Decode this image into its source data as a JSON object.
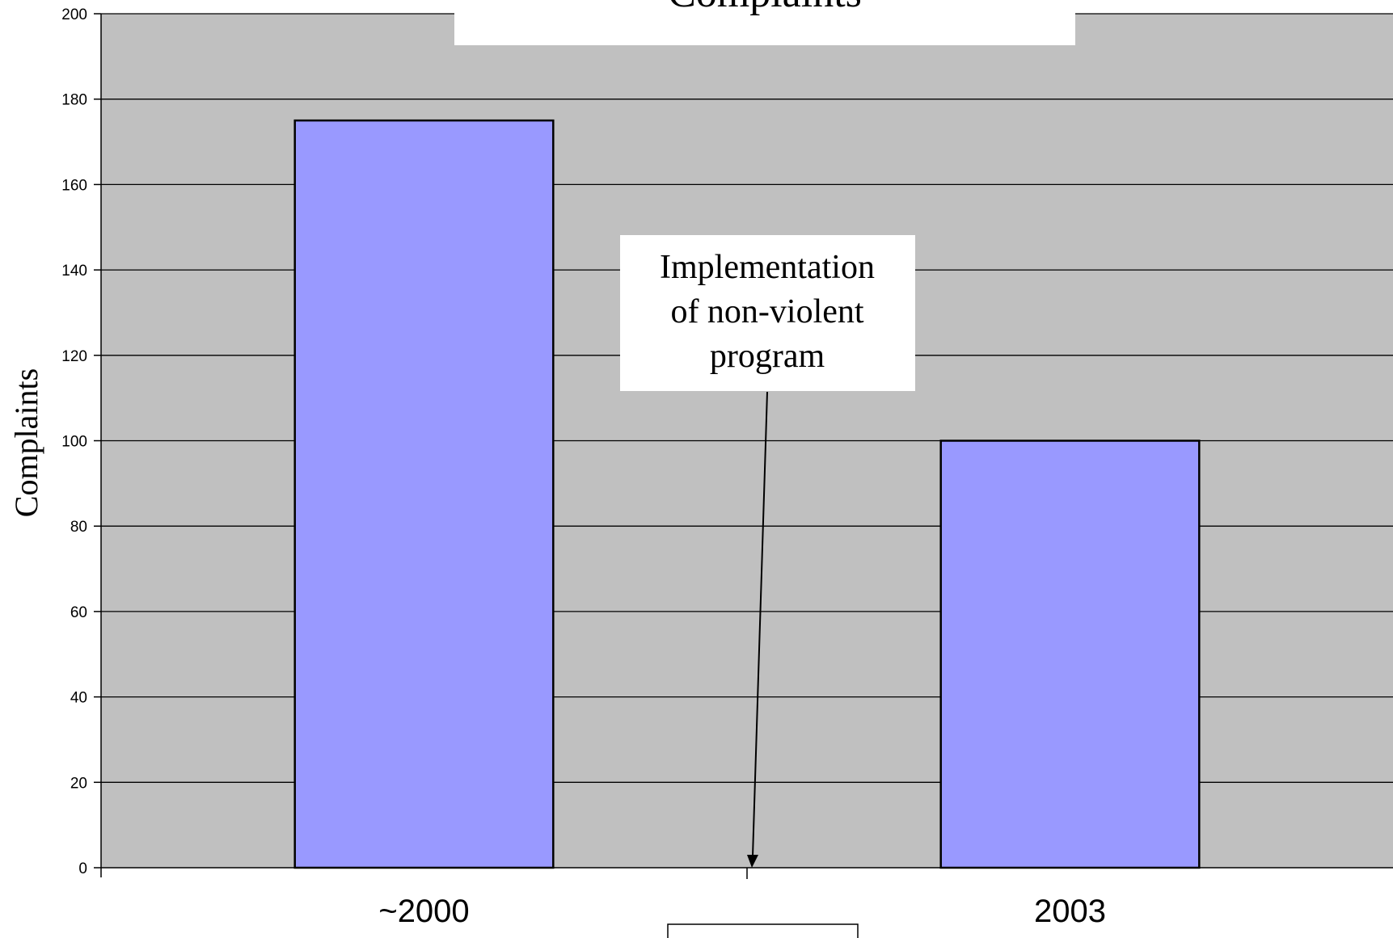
{
  "chart_data": {
    "type": "bar",
    "title": "Complaints",
    "ylabel": "Complaints",
    "xlabel": "",
    "categories": [
      "~2000",
      "2003"
    ],
    "values": [
      175,
      100
    ],
    "ylim": [
      0,
      200
    ],
    "yticks": [
      0,
      20,
      40,
      60,
      80,
      100,
      120,
      140,
      160,
      180,
      200
    ],
    "grid": true,
    "legend": "none",
    "annotation": {
      "lines": [
        "Implementation",
        "of non-violent",
        "program"
      ],
      "points_to": "between ~2000 and 2003"
    },
    "colors": {
      "plot_background": "#c0c0c0",
      "bar_fill": "#9999ff",
      "bar_stroke": "#000000",
      "gridline": "#000000"
    }
  }
}
